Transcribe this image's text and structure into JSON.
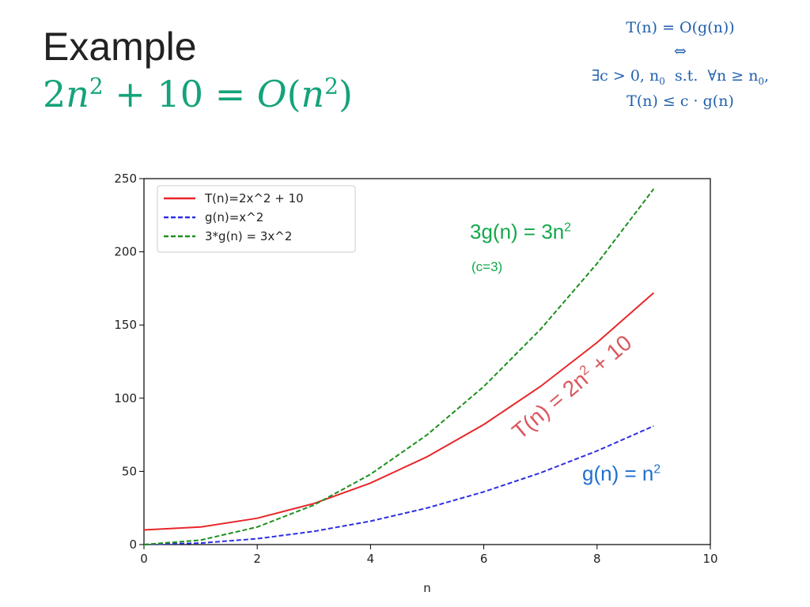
{
  "slide": {
    "title": "Example",
    "formula": {
      "lhs_coef": "2",
      "var": "n",
      "exp": "2",
      "plus_const": " + 10 = ",
      "big_o": "O",
      "open": "(",
      "close": ")"
    }
  },
  "definition": {
    "line1": "T(n) = O(g(n))",
    "line2": "⇔",
    "line3": "∃c > 0, n",
    "line3_sub": "0",
    "line3_rest": "  s.t.  ∀n ≥ n",
    "line3_sub2": "0",
    "line3_end": ",",
    "line4": "T(n) ≤ c · g(n)"
  },
  "annotations": {
    "upper_curve": {
      "text": "3g(n) = 3n",
      "sup": "2",
      "color": "#13a84a"
    },
    "c_note": {
      "text": "(c=3)",
      "color": "#13a84a"
    },
    "t_curve": {
      "text": "T(n) = 2n",
      "sup": "2",
      "tail": " + 10",
      "color": "#d9585e"
    },
    "g_curve": {
      "text": "g(n) = n",
      "sup": "2",
      "color": "#1f6fd0"
    }
  },
  "chart_data": {
    "type": "line",
    "xlabel": "n",
    "ylabel": "",
    "xlim": [
      0,
      10
    ],
    "ylim": [
      0,
      250
    ],
    "xticks": [
      0,
      2,
      4,
      6,
      8,
      10
    ],
    "yticks": [
      0,
      50,
      100,
      150,
      200,
      250
    ],
    "grid": false,
    "legend_position": "upper-left",
    "x": [
      0,
      1,
      2,
      3,
      4,
      5,
      6,
      7,
      8,
      9
    ],
    "series": [
      {
        "name": "T(n)=2x^2 + 10",
        "values": [
          10,
          12,
          18,
          28,
          42,
          60,
          82,
          108,
          138,
          172
        ],
        "color": "#e8262a",
        "dash": "solid"
      },
      {
        "name": "g(n)=x^2",
        "values": [
          0,
          1,
          4,
          9,
          16,
          25,
          36,
          49,
          64,
          81
        ],
        "color": "#2d2fe0",
        "dash": "dashed"
      },
      {
        "name": "3*g(n) = 3x^2",
        "values": [
          0,
          3,
          12,
          27,
          48,
          75,
          108,
          147,
          192,
          243
        ],
        "color": "#1e8f1e",
        "dash": "dashed"
      }
    ]
  }
}
